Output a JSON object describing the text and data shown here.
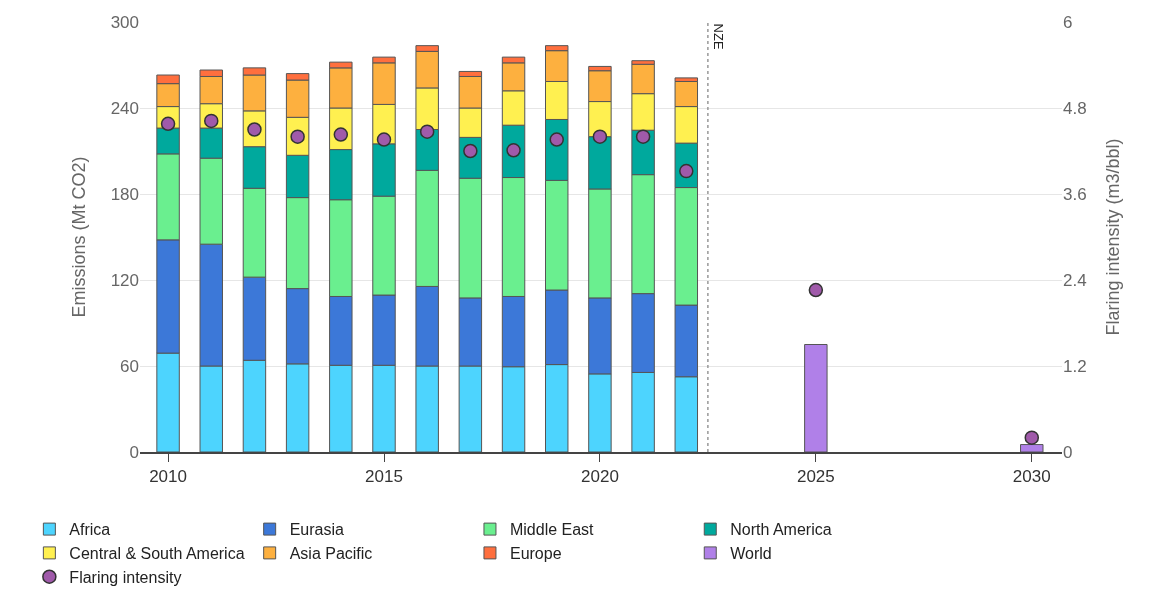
{
  "chart_data": {
    "type": "bar",
    "stacked": true,
    "ylabel": "Emissions (Mt CO2)",
    "y2label": "Flaring intensity (m3/bbl)",
    "x": [
      2010,
      2011,
      2012,
      2013,
      2014,
      2015,
      2016,
      2017,
      2018,
      2019,
      2020,
      2021,
      2022,
      2025,
      2030
    ],
    "xlim": [
      2009.35,
      2030.7
    ],
    "xticks": [
      2010,
      2015,
      2020,
      2025,
      2030
    ],
    "ylim": [
      0,
      300
    ],
    "yticks": [
      0,
      60,
      120,
      180,
      240,
      300
    ],
    "y2lim": [
      0,
      6
    ],
    "y2ticks": [
      0,
      1.2,
      2.4,
      3.6,
      4.8,
      6
    ],
    "grid": "y",
    "legend": "bottom",
    "series": [
      {
        "name": "Africa",
        "color": "#4dd4fe",
        "values": [
          69,
          60,
          64,
          61.5,
          60.5,
          60.5,
          60,
          60,
          59.5,
          61,
          54.5,
          55.5,
          52.5,
          null,
          null
        ]
      },
      {
        "name": "Eurasia",
        "color": "#3c78d8",
        "values": [
          79,
          85,
          58,
          52.5,
          48,
          49,
          55.5,
          47.5,
          49,
          52,
          53,
          55,
          50,
          null,
          null
        ]
      },
      {
        "name": "Middle East",
        "color": "#6aef8f",
        "values": [
          60,
          60,
          62,
          63.5,
          67.5,
          69,
          81,
          83.5,
          83,
          76.5,
          76,
          83,
          82,
          null,
          null
        ]
      },
      {
        "name": "North America",
        "color": "#00a99d",
        "values": [
          18,
          21,
          29,
          29.5,
          35,
          36.5,
          28.5,
          28.5,
          36.5,
          42.5,
          36.5,
          31,
          31,
          null,
          null
        ]
      },
      {
        "name": "Central & South America",
        "color": "#fff050",
        "values": [
          15,
          17,
          25,
          26.5,
          29,
          27.5,
          29,
          20.5,
          24,
          26.5,
          24.5,
          25.5,
          25.5,
          null,
          null
        ]
      },
      {
        "name": "Asia Pacific",
        "color": "#fdb03f",
        "values": [
          16,
          19,
          25,
          26,
          28,
          29,
          25.5,
          22,
          19.5,
          21.5,
          21.5,
          20.5,
          17.5,
          null,
          null
        ]
      },
      {
        "name": "Europe",
        "color": "#ff6f3e",
        "values": [
          6,
          4.5,
          5,
          4.5,
          4,
          4,
          4,
          3.5,
          4,
          3.5,
          3,
          2.5,
          2.5,
          null,
          null
        ]
      },
      {
        "name": "World",
        "color": "#b080e8",
        "values": [
          null,
          null,
          null,
          null,
          null,
          null,
          null,
          null,
          null,
          null,
          null,
          null,
          null,
          75,
          5.2
        ]
      },
      {
        "name": "Flaring intensity",
        "color": "#a05aaa",
        "type": "scatter",
        "axis": "y2",
        "marker": "circle",
        "values": [
          4.58,
          4.62,
          4.5,
          4.4,
          4.43,
          4.36,
          4.47,
          4.2,
          4.21,
          4.36,
          4.4,
          4.4,
          3.92,
          2.26,
          0.2
        ]
      }
    ],
    "ref_lines": [
      {
        "axis": "x",
        "value": 2022.5,
        "label": "NZE",
        "line_style": "dotted",
        "color": "#999999"
      }
    ]
  }
}
